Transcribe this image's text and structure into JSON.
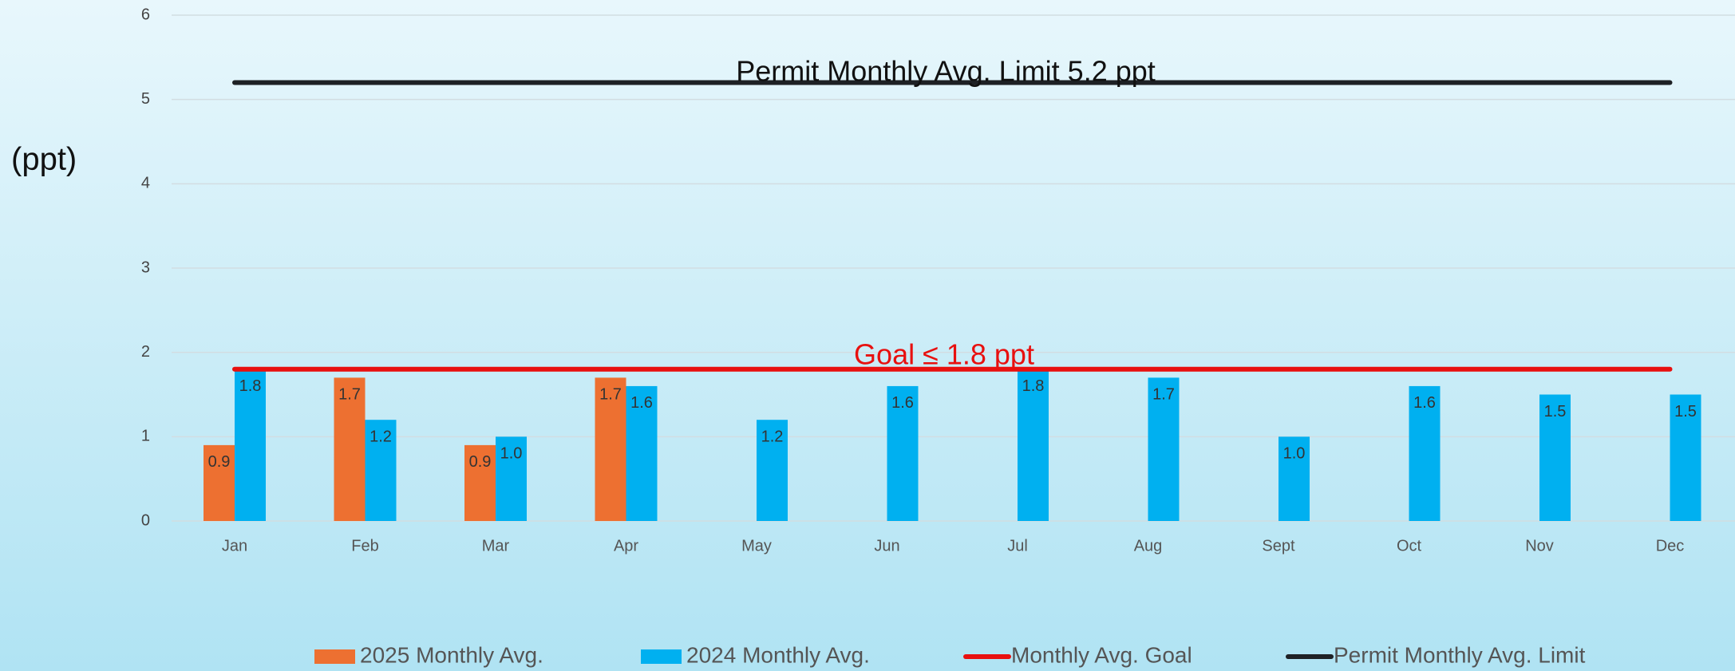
{
  "chart_data": {
    "type": "bar",
    "y_label": "(ppt)",
    "categories": [
      "Jan",
      "Feb",
      "Mar",
      "Apr",
      "May",
      "Jun",
      "Jul",
      "Aug",
      "Sept",
      "Oct",
      "Nov",
      "Dec"
    ],
    "series": [
      {
        "name": "2025 Monthly Avg.",
        "type": "bar",
        "color": "#ed7031",
        "values": [
          0.9,
          1.7,
          0.9,
          1.7,
          null,
          null,
          null,
          null,
          null,
          null,
          null,
          null
        ],
        "value_labels": [
          "0.9",
          "1.7",
          "0.9",
          "1.7",
          null,
          null,
          null,
          null,
          null,
          null,
          null,
          null
        ]
      },
      {
        "name": "2024 Monthly Avg.",
        "type": "bar",
        "color": "#00b0f0",
        "values": [
          1.8,
          1.2,
          1,
          1.6,
          1.2,
          1.6,
          1.8,
          1.7,
          1,
          1.6,
          1.5,
          1.5
        ],
        "value_labels": [
          "1.8",
          "1.2",
          "1.0",
          "1.6",
          "1.2",
          "1.6",
          "1.8",
          "1.7",
          "1.0",
          "1.6",
          "1.5",
          "1.5"
        ]
      },
      {
        "name": "Monthly Avg. Goal",
        "type": "line",
        "color": "#e8100f",
        "values": [
          1.8,
          1.8,
          1.8,
          1.8,
          1.8,
          1.8,
          1.8,
          1.8,
          1.8,
          1.8,
          1.8,
          1.8
        ]
      },
      {
        "name": "Permit Monthly Avg. Limit",
        "type": "line",
        "color": "#1e2125",
        "values": [
          5.2,
          5.2,
          5.2,
          5.2,
          5.2,
          5.2,
          5.2,
          5.2,
          5.2,
          5.2,
          5.2,
          5.2
        ]
      }
    ],
    "annotations": [
      "Goal ≤ 1.8 ppt",
      "Permit Monthly Avg. Limit 5.2 ppt"
    ],
    "ylim": [
      0,
      6
    ],
    "yticks": [
      0,
      1,
      2,
      3,
      4,
      5,
      6
    ],
    "grid": true,
    "legend": "bottom"
  }
}
